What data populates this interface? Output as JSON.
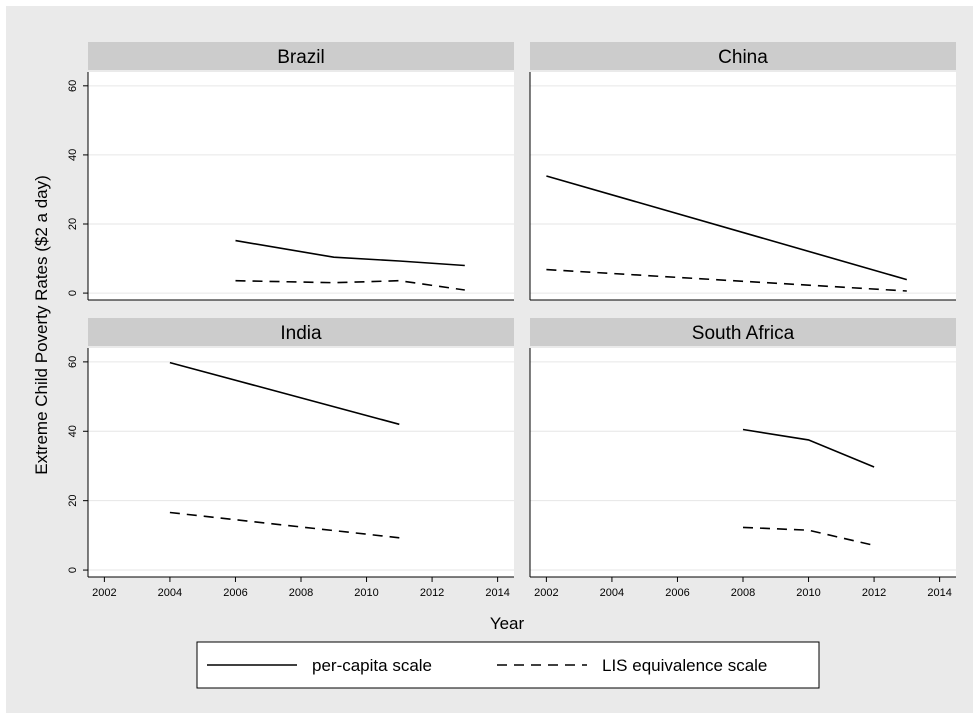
{
  "chart_data": {
    "type": "line",
    "ylabel": "Extreme Child Poverty Rates ($2 a day)",
    "xlabel": "Year",
    "xlim": [
      2001.5,
      2014.5
    ],
    "ylim": [
      -2,
      64
    ],
    "xticks": [
      "2002",
      "2004",
      "2006",
      "2008",
      "2010",
      "2012",
      "2014"
    ],
    "yticks": [
      "0",
      "20",
      "40",
      "60"
    ],
    "grid": true,
    "legend_position": "bottom",
    "legend": [
      "per-capita scale",
      "LIS equivalence scale"
    ],
    "panels": [
      {
        "title": "Brazil",
        "series": [
          {
            "name": "per-capita scale",
            "style": "solid",
            "x": [
              2006,
              2009,
              2011,
              2013
            ],
            "y": [
              15.2,
              10.4,
              9.3,
              8.0
            ]
          },
          {
            "name": "LIS equivalence scale",
            "style": "dashed",
            "x": [
              2006,
              2009,
              2011,
              2013
            ],
            "y": [
              3.6,
              3.0,
              3.6,
              0.9
            ]
          }
        ]
      },
      {
        "title": "China",
        "series": [
          {
            "name": "per-capita scale",
            "style": "solid",
            "x": [
              2002,
              2013
            ],
            "y": [
              33.9,
              3.9
            ]
          },
          {
            "name": "LIS equivalence scale",
            "style": "dashed",
            "x": [
              2002,
              2013
            ],
            "y": [
              6.8,
              0.6
            ]
          }
        ]
      },
      {
        "title": "India",
        "series": [
          {
            "name": "per-capita scale",
            "style": "solid",
            "x": [
              2004,
              2011
            ],
            "y": [
              59.8,
              42.0
            ]
          },
          {
            "name": "LIS equivalence scale",
            "style": "dashed",
            "x": [
              2004,
              2011
            ],
            "y": [
              16.6,
              9.3
            ]
          }
        ]
      },
      {
        "title": "South Africa",
        "series": [
          {
            "name": "per-capita scale",
            "style": "solid",
            "x": [
              2008,
              2010,
              2012
            ],
            "y": [
              40.5,
              37.5,
              29.7
            ]
          },
          {
            "name": "LIS equivalence scale",
            "style": "dashed",
            "x": [
              2008,
              2010,
              2012
            ],
            "y": [
              12.3,
              11.5,
              7.1
            ]
          }
        ]
      }
    ]
  }
}
